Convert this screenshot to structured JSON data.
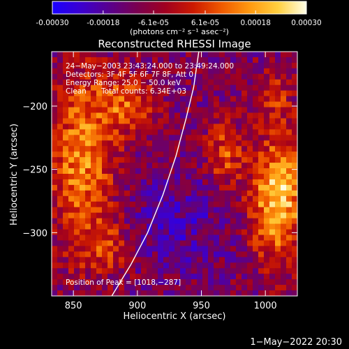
{
  "colorbar": {
    "tick_labels": [
      "-0.00030",
      "-0.00018",
      "-6.1e-05",
      "6.1e-05",
      "0.00018",
      "0.00030"
    ],
    "tick_values": [
      -0.0003,
      -0.00018,
      -6.1e-05,
      6.1e-05,
      0.00018,
      0.0003
    ],
    "range": [
      -0.0003,
      0.0003
    ],
    "units_label": "(photons cm⁻² s⁻¹ asec⁻²)",
    "colors": [
      "#1a00ff",
      "#3b00d0",
      "#58008f",
      "#7a0050",
      "#a00020",
      "#cc1a00",
      "#f05a00",
      "#ff9a10",
      "#ffd040",
      "#ffffe8"
    ]
  },
  "chart_data": {
    "type": "heatmap",
    "title": "Reconstructed RHESSI Image",
    "xlabel": "Heliocentric X (arcsec)",
    "ylabel": "Heliocentric Y (arcsec)",
    "xlim": [
      833,
      1025
    ],
    "ylim": [
      -350,
      -157
    ],
    "x_ticks": [
      850,
      900,
      950,
      1000
    ],
    "x_tick_labels": [
      "850",
      "900",
      "950",
      "1000"
    ],
    "y_ticks": [
      -200,
      -250,
      -300
    ],
    "y_tick_labels": [
      "−200",
      "−250",
      "−300"
    ],
    "value_range": [
      -0.0003,
      0.0003
    ],
    "limb_curve": [
      [
        880,
        -350
      ],
      [
        895,
        -325
      ],
      [
        908,
        -300
      ],
      [
        920,
        -270
      ],
      [
        930,
        -240
      ],
      [
        938,
        -210
      ],
      [
        944,
        -185
      ],
      [
        948,
        -157
      ]
    ],
    "peak_position": [
      1018,
      -287
    ],
    "annotations": [
      "24−May−2003 23:43:24.000 to 23:49:24.000",
      "Detectors: 3F 4F 5F 6F 7F 8F, Att 0",
      "Energy Range: 25.0 − 50.0 keV",
      "Clean",
      "Total counts: 6.34E+03",
      "Position of Peak = [1018,−287]"
    ]
  },
  "footer": {
    "timestamp": "1−May−2022 20:30"
  }
}
